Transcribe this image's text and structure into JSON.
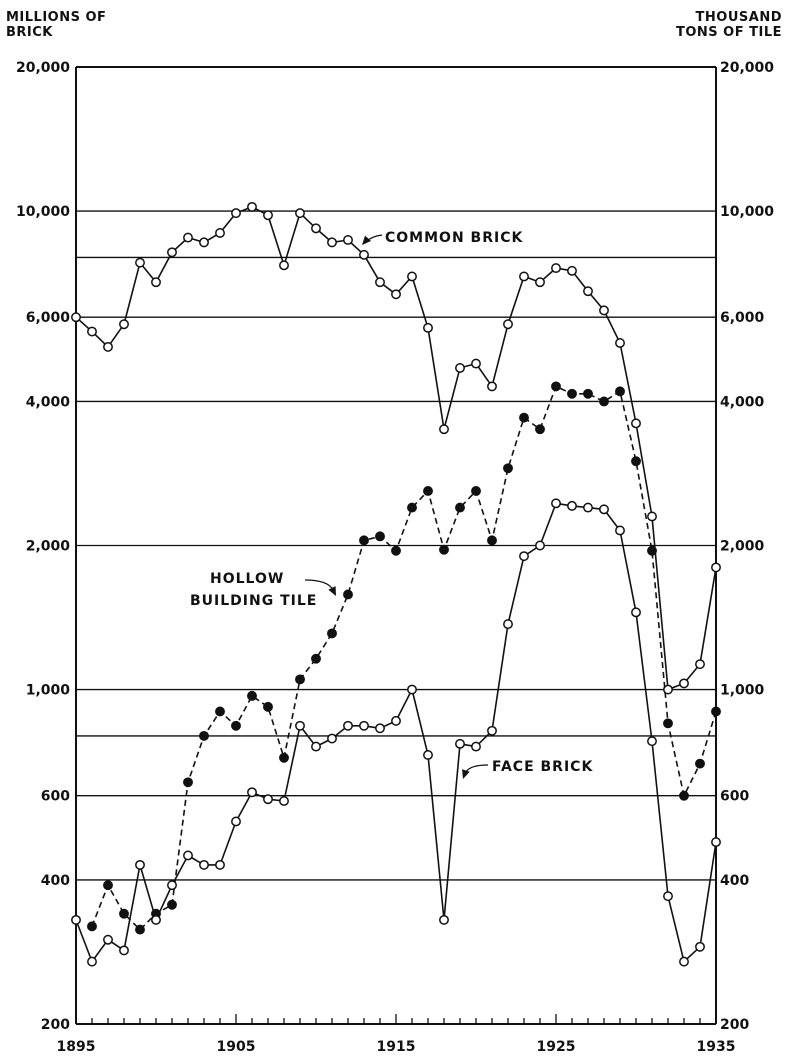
{
  "header": {
    "left_line1": "MILLIONS OF",
    "left_line2": "BRICK",
    "right_line1": "THOUSAND",
    "right_line2": "TONS OF TILE"
  },
  "chart_data": {
    "type": "line",
    "y_scale": "log",
    "grid": "horizontal",
    "xlim": [
      1895,
      1935
    ],
    "ylim": [
      200,
      20000
    ],
    "x_tick_labels": [
      "1895",
      "1905",
      "1915",
      "1925",
      "1935"
    ],
    "y_tick_labels_left": [
      "20,000",
      "10,000",
      "6,000",
      "4,000",
      "2,000",
      "1,000",
      "600",
      "400",
      "200"
    ],
    "y_tick_labels_right": [
      "20,000",
      "10,000",
      "6,000",
      "4,000",
      "2,000",
      "1,000",
      "600",
      "400",
      "200"
    ],
    "annotations": {
      "common_brick": "COMMON BRICK",
      "hollow_line1": "HOLLOW",
      "hollow_line2": "BUILDING TILE",
      "face_brick": "FACE BRICK"
    },
    "x": [
      1895,
      1896,
      1897,
      1898,
      1899,
      1900,
      1901,
      1902,
      1903,
      1904,
      1905,
      1906,
      1907,
      1908,
      1909,
      1910,
      1911,
      1912,
      1913,
      1914,
      1915,
      1916,
      1917,
      1918,
      1919,
      1920,
      1921,
      1922,
      1923,
      1924,
      1925,
      1926,
      1927,
      1928,
      1929,
      1930,
      1931,
      1932,
      1933,
      1934,
      1935
    ],
    "series": [
      {
        "name": "COMMON BRICK",
        "style": "solid",
        "marker": "open",
        "values": [
          6000,
          5600,
          5200,
          5800,
          7800,
          7100,
          8200,
          8800,
          8600,
          9000,
          9900,
          10200,
          9800,
          7700,
          9900,
          9200,
          8600,
          8700,
          8100,
          7100,
          6700,
          7300,
          5700,
          3500,
          4700,
          4800,
          4300,
          5800,
          7300,
          7100,
          7600,
          7500,
          6800,
          6200,
          5300,
          3600,
          2300,
          1000,
          1030,
          1130,
          1800
        ]
      },
      {
        "name": "HOLLOW BUILDING TILE",
        "style": "dashed",
        "marker": "filled",
        "values": [
          null,
          320,
          390,
          340,
          315,
          340,
          355,
          640,
          800,
          900,
          840,
          970,
          920,
          720,
          1050,
          1160,
          1310,
          1580,
          2050,
          2090,
          1950,
          2400,
          2600,
          1960,
          2400,
          2600,
          2050,
          2900,
          3700,
          3500,
          4300,
          4150,
          4150,
          4000,
          4200,
          3000,
          1950,
          850,
          600,
          700,
          900
        ]
      },
      {
        "name": "FACE BRICK",
        "style": "solid",
        "marker": "open",
        "values": [
          330,
          270,
          300,
          285,
          430,
          330,
          390,
          450,
          430,
          430,
          530,
          610,
          590,
          585,
          840,
          760,
          790,
          840,
          840,
          830,
          860,
          1000,
          730,
          330,
          770,
          760,
          820,
          1370,
          1900,
          2000,
          2450,
          2420,
          2400,
          2380,
          2150,
          1450,
          780,
          370,
          270,
          290,
          480
        ]
      }
    ]
  }
}
